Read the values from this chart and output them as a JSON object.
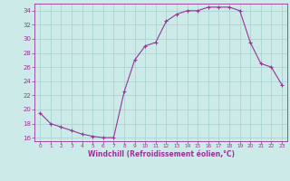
{
  "hours": [
    0,
    1,
    2,
    3,
    4,
    5,
    6,
    7,
    8,
    9,
    10,
    11,
    12,
    13,
    14,
    15,
    16,
    17,
    18,
    19,
    20,
    21,
    22,
    23
  ],
  "values": [
    19.5,
    18.0,
    17.5,
    17.0,
    16.5,
    16.2,
    16.0,
    16.0,
    22.5,
    27.0,
    29.0,
    29.5,
    32.5,
    33.5,
    34.0,
    34.0,
    34.5,
    34.5,
    34.5,
    34.0,
    29.5,
    26.5,
    26.0,
    23.5
  ],
  "line_color": "#993399",
  "marker": "+",
  "bg_color": "#cceae8",
  "grid_color": "#aad4d0",
  "text_color": "#993399",
  "xlabel": "Windchill (Refroidissement éolien,°C)",
  "ylim": [
    15.5,
    35.0
  ],
  "yticks": [
    16,
    18,
    20,
    22,
    24,
    26,
    28,
    30,
    32,
    34
  ],
  "xlim": [
    -0.5,
    23.5
  ]
}
